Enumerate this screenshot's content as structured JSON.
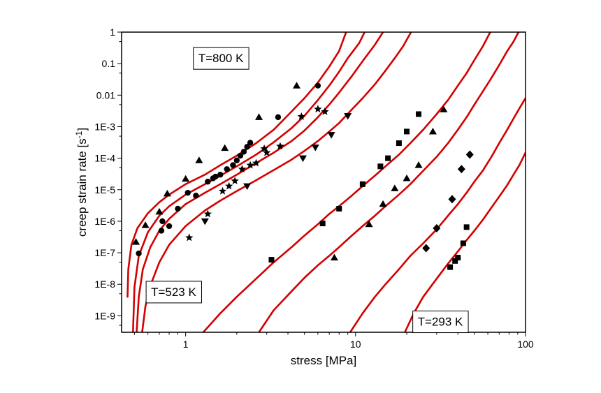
{
  "chart_data": {
    "type": "scatter",
    "xlabel": "stress [MPa]",
    "ylabel_main": "creep strain rate [s",
    "ylabel_sup": "-1",
    "ylabel_end": "]",
    "x_scale": "log",
    "y_scale": "log",
    "xlim": [
      0.42,
      100
    ],
    "ylim": [
      3e-10,
      1
    ],
    "grid": false,
    "line_color": "#d40000",
    "marker_color": "#000000",
    "x_ticks": [
      {
        "value": 1,
        "label": "1"
      },
      {
        "value": 10,
        "label": "10"
      },
      {
        "value": 100,
        "label": "100"
      }
    ],
    "y_ticks": [
      {
        "value": 1,
        "label": "1"
      },
      {
        "value": 0.1,
        "label": "0.1"
      },
      {
        "value": 0.01,
        "label": "0.01"
      },
      {
        "value": 0.001,
        "label": "1E-3"
      },
      {
        "value": 0.0001,
        "label": "1E-4"
      },
      {
        "value": 1e-05,
        "label": "1E-5"
      },
      {
        "value": 1e-06,
        "label": "1E-6"
      },
      {
        "value": 1e-07,
        "label": "1E-7"
      },
      {
        "value": 1e-08,
        "label": "1E-8"
      },
      {
        "value": 1e-09,
        "label": "1E-9"
      }
    ],
    "annotations": [
      {
        "text": "T=800 K",
        "x": 1.1,
        "y": 0.15
      },
      {
        "text": "T=523 K",
        "x": 0.58,
        "y": 5.8e-09
      },
      {
        "text": "T=293 K",
        "x": 21.5,
        "y": 6.6e-10
      }
    ],
    "curves": [
      {
        "points": [
          [
            0.455,
            4e-09
          ],
          [
            0.46,
            3e-08
          ],
          [
            0.48,
            1.8e-07
          ],
          [
            0.52,
            6e-07
          ],
          [
            0.6,
            1.8e-06
          ],
          [
            0.7,
            4e-06
          ],
          [
            0.8,
            7e-06
          ],
          [
            1.0,
            1.5e-05
          ],
          [
            1.3,
            3e-05
          ],
          [
            1.6,
            6e-05
          ],
          [
            2.0,
            0.00012
          ],
          [
            2.6,
            0.0003
          ],
          [
            3.3,
            0.0008
          ],
          [
            4.0,
            0.0023
          ],
          [
            5.0,
            0.008
          ],
          [
            6.0,
            0.025
          ],
          [
            7.0,
            0.08
          ],
          [
            8.0,
            0.25
          ],
          [
            8.8,
            1
          ]
        ]
      },
      {
        "points": [
          [
            0.49,
            3e-10
          ],
          [
            0.5,
            8e-09
          ],
          [
            0.53,
            8e-08
          ],
          [
            0.6,
            4.5e-07
          ],
          [
            0.7,
            1.5e-06
          ],
          [
            0.8,
            3e-06
          ],
          [
            1.0,
            7e-06
          ],
          [
            1.3,
            1.5e-05
          ],
          [
            1.6,
            2.8e-05
          ],
          [
            2.0,
            5.5e-05
          ],
          [
            2.6,
            0.00013
          ],
          [
            3.3,
            0.00032
          ],
          [
            4.2,
            0.0009
          ],
          [
            5.0,
            0.0022
          ],
          [
            6.0,
            0.007
          ],
          [
            7.0,
            0.02
          ],
          [
            8.0,
            0.055
          ],
          [
            9.0,
            0.15
          ],
          [
            10.5,
            0.45
          ],
          [
            11.3,
            1
          ]
        ]
      },
      {
        "points": [
          [
            0.515,
            3e-10
          ],
          [
            0.53,
            4e-09
          ],
          [
            0.56,
            3e-08
          ],
          [
            0.62,
            1.5e-07
          ],
          [
            0.7,
            5e-07
          ],
          [
            0.8,
            1.2e-06
          ],
          [
            1.0,
            3.5e-06
          ],
          [
            1.3,
            8e-06
          ],
          [
            1.6,
            1.5e-05
          ],
          [
            2.0,
            3e-05
          ],
          [
            2.6,
            7e-05
          ],
          [
            3.3,
            0.00015
          ],
          [
            4.2,
            0.00035
          ],
          [
            5.0,
            0.00075
          ],
          [
            6.0,
            0.002
          ],
          [
            7.0,
            0.005
          ],
          [
            8.0,
            0.012
          ],
          [
            9.5,
            0.04
          ],
          [
            11.0,
            0.12
          ],
          [
            13.0,
            0.4
          ],
          [
            14.5,
            1
          ]
        ]
      },
      {
        "points": [
          [
            0.555,
            3e-10
          ],
          [
            0.58,
            2e-09
          ],
          [
            0.62,
            9e-09
          ],
          [
            0.7,
            5e-08
          ],
          [
            0.8,
            1.8e-07
          ],
          [
            1.0,
            7e-07
          ],
          [
            1.3,
            2.2e-06
          ],
          [
            1.6,
            4.5e-06
          ],
          [
            2.0,
            9e-06
          ],
          [
            2.6,
            2e-05
          ],
          [
            3.3,
            4.2e-05
          ],
          [
            4.2,
            9e-05
          ],
          [
            5.0,
            0.00017
          ],
          [
            6.0,
            0.00035
          ],
          [
            7.0,
            0.0007
          ],
          [
            8.0,
            0.0013
          ],
          [
            9.5,
            0.0035
          ],
          [
            11.0,
            0.008
          ],
          [
            13.0,
            0.022
          ],
          [
            15.0,
            0.06
          ],
          [
            17.0,
            0.15
          ],
          [
            19.0,
            0.35
          ],
          [
            21.2,
            1
          ]
        ]
      },
      {
        "points": [
          [
            1.27,
            3e-10
          ],
          [
            1.6,
            1.2e-09
          ],
          [
            2.0,
            4e-09
          ],
          [
            2.6,
            1.5e-08
          ],
          [
            3.3,
            5e-08
          ],
          [
            4.2,
            1.5e-07
          ],
          [
            5.0,
            3.5e-07
          ],
          [
            6.0,
            8e-07
          ],
          [
            7.0,
            1.7e-06
          ],
          [
            8.0,
            3e-06
          ],
          [
            9.5,
            6.5e-06
          ],
          [
            11.0,
            1.3e-05
          ],
          [
            13.0,
            2.8e-05
          ],
          [
            15.0,
            5.5e-05
          ],
          [
            18.0,
            0.00013
          ],
          [
            21.0,
            0.0003
          ],
          [
            25.0,
            0.0008
          ],
          [
            30.0,
            0.0025
          ],
          [
            35.0,
            0.007
          ],
          [
            40.0,
            0.02
          ],
          [
            45.0,
            0.05
          ],
          [
            50.0,
            0.13
          ],
          [
            56.0,
            0.35
          ],
          [
            62.0,
            1
          ]
        ]
      },
      {
        "points": [
          [
            2.7,
            3e-10
          ],
          [
            3.3,
            1.5e-09
          ],
          [
            4.2,
            6e-09
          ],
          [
            5.0,
            1.6e-08
          ],
          [
            6.0,
            4e-08
          ],
          [
            7.0,
            8e-08
          ],
          [
            8.0,
            1.5e-07
          ],
          [
            9.5,
            3.5e-07
          ],
          [
            11.0,
            7e-07
          ],
          [
            13.0,
            1.5e-06
          ],
          [
            15.0,
            3e-06
          ],
          [
            18.0,
            7e-06
          ],
          [
            21.0,
            1.5e-05
          ],
          [
            25.0,
            4e-05
          ],
          [
            30.0,
            0.00011
          ],
          [
            35.0,
            0.0003
          ],
          [
            40.0,
            0.0008
          ],
          [
            45.0,
            0.002
          ],
          [
            50.0,
            0.005
          ],
          [
            56.0,
            0.013
          ],
          [
            63.0,
            0.035
          ],
          [
            70.0,
            0.09
          ],
          [
            78.0,
            0.25
          ],
          [
            85.0,
            0.5
          ],
          [
            91.0,
            1
          ]
        ]
      },
      {
        "points": [
          [
            9.3,
            3e-10
          ],
          [
            11.0,
            1.2e-09
          ],
          [
            13.0,
            4e-09
          ],
          [
            15.0,
            1e-08
          ],
          [
            18.0,
            3e-08
          ],
          [
            21.0,
            8e-08
          ],
          [
            25.0,
            2e-07
          ],
          [
            30.0,
            5.5e-07
          ],
          [
            35.0,
            1.5e-06
          ],
          [
            40.0,
            3.5e-06
          ],
          [
            45.0,
            8e-06
          ],
          [
            50.0,
            1.8e-05
          ],
          [
            56.0,
            4e-05
          ],
          [
            63.0,
            0.00011
          ],
          [
            70.0,
            0.0003
          ],
          [
            78.0,
            0.0008
          ],
          [
            85.0,
            0.0018
          ],
          [
            92.0,
            0.0038
          ],
          [
            100.0,
            0.008
          ]
        ]
      },
      {
        "points": [
          [
            19.5,
            3e-10
          ],
          [
            22.0,
            1.2e-09
          ],
          [
            25.0,
            4e-09
          ],
          [
            30.0,
            1.5e-08
          ],
          [
            35.0,
            4.5e-08
          ],
          [
            40.0,
            1.1e-07
          ],
          [
            45.0,
            2.5e-07
          ],
          [
            50.0,
            5e-07
          ],
          [
            56.0,
            1.1e-06
          ],
          [
            63.0,
            2.7e-06
          ],
          [
            70.0,
            6e-06
          ],
          [
            78.0,
            1.4e-05
          ],
          [
            85.0,
            3e-05
          ],
          [
            92.0,
            6e-05
          ],
          [
            100.0,
            0.00015
          ]
        ]
      }
    ],
    "series": [
      {
        "marker": "triangle-up",
        "points": [
          [
            0.51,
            2.2e-07
          ],
          [
            0.58,
            7.5e-07
          ],
          [
            0.7,
            2e-06
          ],
          [
            0.78,
            7.5e-06
          ],
          [
            1.0,
            2.2e-05
          ],
          [
            1.2,
            8.5e-05
          ],
          [
            1.7,
            0.00021
          ],
          [
            2.7,
            0.002
          ],
          [
            4.5,
            0.02
          ]
        ]
      },
      {
        "marker": "circle",
        "points": [
          [
            0.53,
            9.5e-08
          ],
          [
            0.72,
            5e-07
          ],
          [
            0.73,
            1e-06
          ],
          [
            0.8,
            7e-07
          ],
          [
            0.9,
            2.5e-06
          ],
          [
            1.03,
            8e-06
          ],
          [
            1.15,
            6.5e-06
          ],
          [
            1.35,
            1.8e-05
          ],
          [
            1.45,
            2.3e-05
          ],
          [
            1.5,
            2.6e-05
          ],
          [
            1.6,
            3e-05
          ],
          [
            1.75,
            4.5e-05
          ],
          [
            1.9,
            6e-05
          ],
          [
            2.0,
            8.5e-05
          ],
          [
            2.1,
            0.00012
          ],
          [
            2.2,
            0.00016
          ],
          [
            2.3,
            0.00023
          ],
          [
            2.4,
            0.00031
          ],
          [
            3.5,
            0.002
          ],
          [
            6.0,
            0.02
          ]
        ]
      },
      {
        "marker": "star",
        "points": [
          [
            1.05,
            3e-07
          ],
          [
            1.35,
            1.7e-06
          ],
          [
            1.65,
            9e-06
          ],
          [
            1.8,
            1.3e-05
          ],
          [
            1.95,
            1.9e-05
          ],
          [
            2.15,
            4.5e-05
          ],
          [
            2.4,
            6e-05
          ],
          [
            2.6,
            7e-05
          ],
          [
            2.9,
            0.0002
          ],
          [
            3.0,
            0.00015
          ],
          [
            3.6,
            0.00024
          ],
          [
            4.8,
            0.0021
          ],
          [
            6.0,
            0.0036
          ],
          [
            6.6,
            0.003
          ]
        ]
      },
      {
        "marker": "triangle-down",
        "points": [
          [
            1.3,
            1e-06
          ],
          [
            2.3,
            1.3e-05
          ],
          [
            4.9,
            0.0001
          ],
          [
            5.8,
            0.00022
          ],
          [
            7.2,
            0.00055
          ],
          [
            9.0,
            0.0022
          ]
        ]
      },
      {
        "marker": "square",
        "points": [
          [
            3.2,
            6e-08
          ],
          [
            6.4,
            8.5e-07
          ],
          [
            8.0,
            2.5e-06
          ],
          [
            11.0,
            1.5e-05
          ],
          [
            14.0,
            5.5e-05
          ],
          [
            15.5,
            0.0001
          ],
          [
            18.0,
            0.0003
          ],
          [
            20.0,
            0.0007
          ],
          [
            23.5,
            0.0025
          ]
        ]
      },
      {
        "marker": "triangle-up",
        "points": [
          [
            7.5,
            7e-08
          ],
          [
            12.0,
            8e-07
          ],
          [
            14.5,
            3.5e-06
          ],
          [
            17.0,
            1.1e-05
          ],
          [
            20.0,
            2.3e-05
          ],
          [
            23.5,
            6e-05
          ],
          [
            28.5,
            0.0007
          ],
          [
            33.0,
            0.0035
          ]
        ]
      },
      {
        "marker": "diamond",
        "points": [
          [
            26.0,
            1.4e-07
          ],
          [
            30.0,
            6e-07
          ],
          [
            37.0,
            5e-06
          ],
          [
            42.0,
            4.5e-05
          ],
          [
            47.0,
            0.00013
          ]
        ]
      },
      {
        "marker": "square",
        "points": [
          [
            36.0,
            3.5e-08
          ],
          [
            38.5,
            5.5e-08
          ],
          [
            40.0,
            7e-08
          ],
          [
            43.0,
            2e-07
          ],
          [
            45.0,
            6.5e-07
          ]
        ]
      }
    ]
  }
}
